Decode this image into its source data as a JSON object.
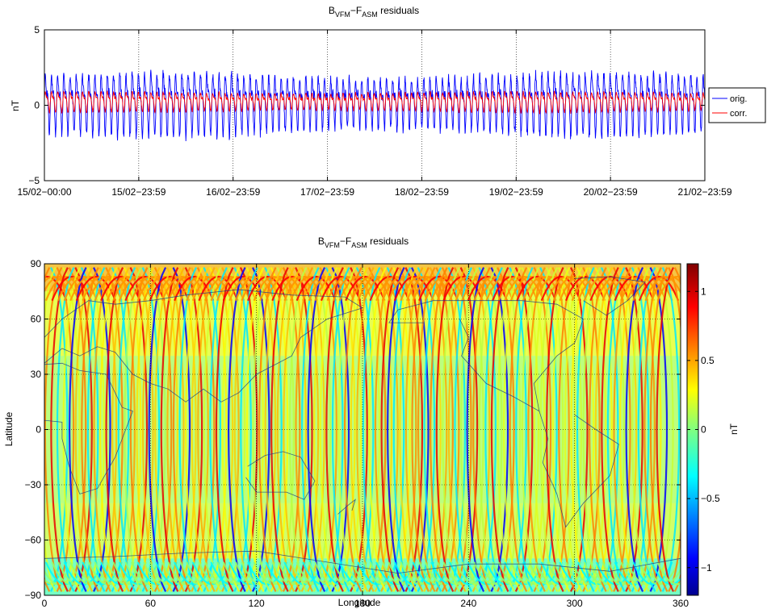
{
  "chart_data": [
    {
      "type": "line",
      "title": {
        "main": "B",
        "sub1": "VFM",
        "mid": "−F",
        "sub2": "ASM",
        "rest": " residuals"
      },
      "ylabel": "nT",
      "xlabel": "",
      "ylim": [
        -5,
        5
      ],
      "yticks": [
        "5",
        "0",
        "−5"
      ],
      "xtick_labels": [
        "15/02−00:00",
        "15/02−23:59",
        "16/02−23:59",
        "17/02−23:59",
        "18/02−23:59",
        "19/02−23:59",
        "20/02−23:59",
        "21/02−23:59"
      ],
      "grid": true,
      "legend_position": "outside-right",
      "series": [
        {
          "name": "orig.",
          "color": "#0000ff",
          "amplitude": 1.7,
          "mean": 0.3,
          "orbits_per_day": 15.2
        },
        {
          "name": "corr.",
          "color": "#ff0000",
          "amplitude": 0.55,
          "mean": 0.3,
          "orbits_per_day": 15.2
        }
      ]
    },
    {
      "type": "heatmap",
      "title": {
        "main": "B",
        "sub1": "VFM",
        "mid": "−F",
        "sub2": "ASM",
        "rest": " residuals"
      },
      "xlabel": "Longitude",
      "ylabel": "Latitude",
      "xlim": [
        0,
        360
      ],
      "ylim": [
        -90,
        90
      ],
      "xticks": [
        "0",
        "60",
        "120",
        "180",
        "240",
        "300",
        "360"
      ],
      "yticks": [
        "90",
        "60",
        "30",
        "0",
        "−30",
        "−60",
        "−90"
      ],
      "grid": true,
      "colorbar": {
        "label": "nT",
        "range": [
          -1.2,
          1.2
        ],
        "ticks": [
          "1",
          "0.5",
          "0",
          "−0.5",
          "−1"
        ],
        "tick_values": [
          1,
          0.5,
          0,
          -0.5,
          -1
        ],
        "colormap": "jet"
      }
    }
  ]
}
